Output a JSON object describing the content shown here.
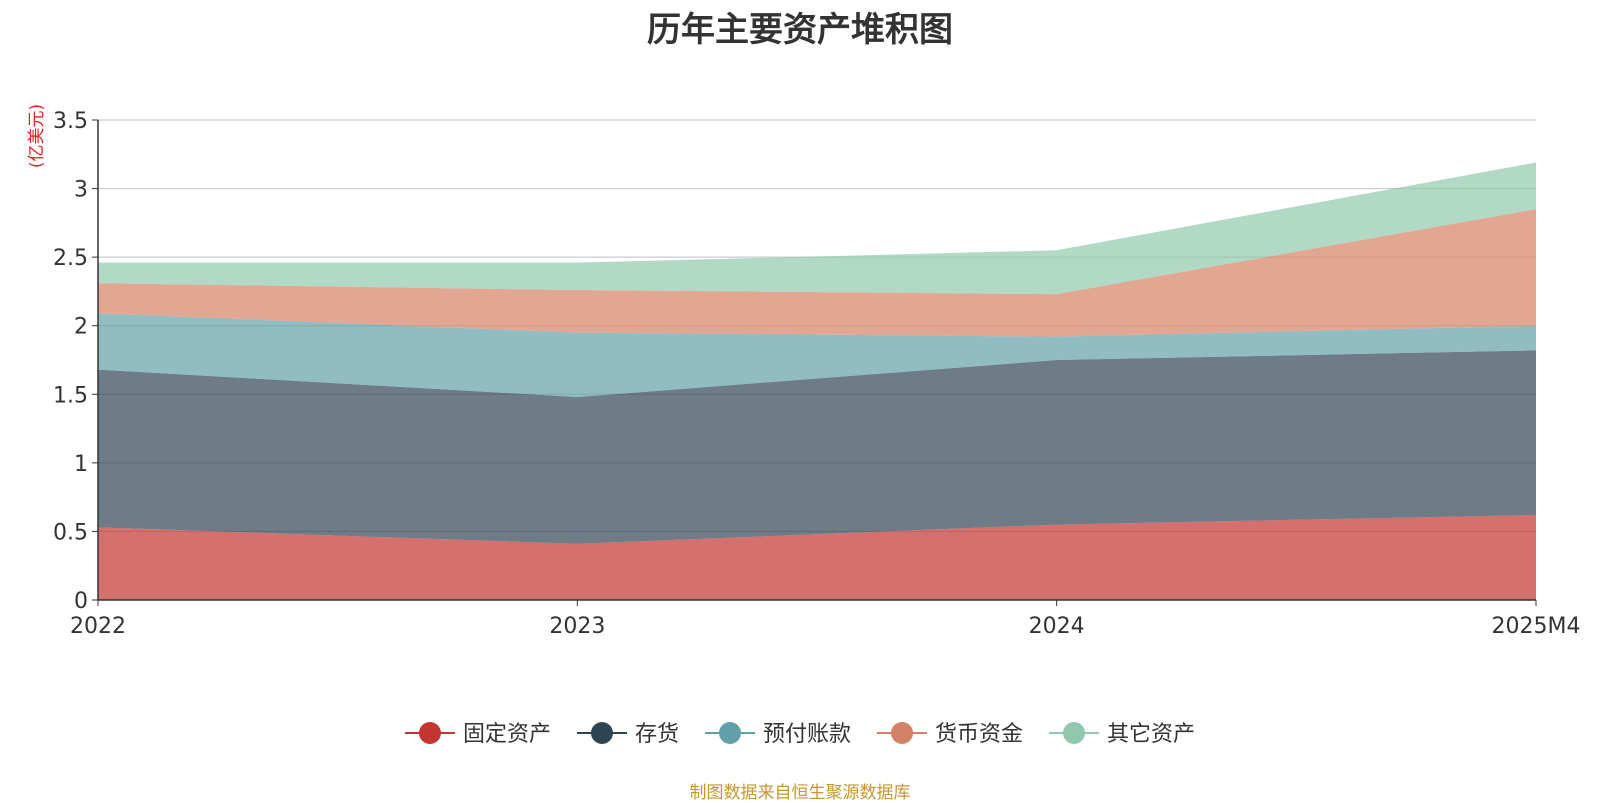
{
  "chart_data": {
    "type": "area",
    "stacked": true,
    "title": "历年主要资产堆积图",
    "ylabel": "(亿美元)",
    "xlabel": "",
    "categories": [
      "2022",
      "2023",
      "2024",
      "2025M4"
    ],
    "ylim": [
      0,
      3.5
    ],
    "yticks": [
      "0",
      "0.5",
      "1",
      "1.5",
      "2",
      "2.5",
      "3",
      "3.5"
    ],
    "grid": true,
    "legend_position": "bottom",
    "series": [
      {
        "name": "固定资产",
        "color": "#c23531",
        "values": [
          0.53,
          0.41,
          0.55,
          0.62
        ]
      },
      {
        "name": "存货",
        "color": "#2f4554",
        "values": [
          1.15,
          1.07,
          1.2,
          1.2
        ]
      },
      {
        "name": "预付账款",
        "color": "#61a0a8",
        "values": [
          0.41,
          0.47,
          0.17,
          0.18
        ]
      },
      {
        "name": "货币资金",
        "color": "#d48265",
        "values": [
          0.22,
          0.31,
          0.31,
          0.85
        ]
      },
      {
        "name": "其它资产",
        "color": "#91c7ae",
        "values": [
          0.15,
          0.2,
          0.32,
          0.34
        ]
      }
    ]
  },
  "source_note": "制图数据来自恒生聚源数据库"
}
